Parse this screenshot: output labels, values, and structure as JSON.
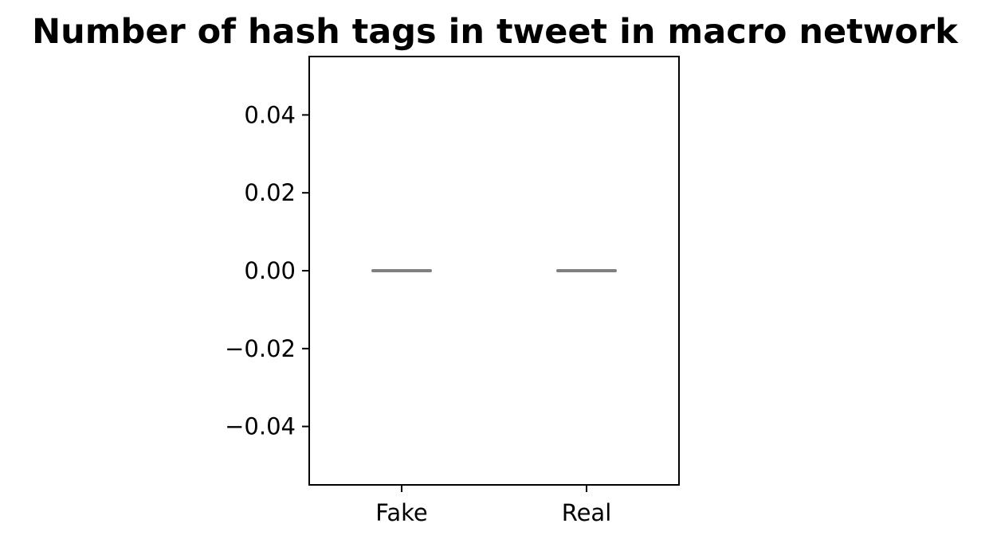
{
  "chart_data": {
    "type": "box",
    "title": "Number of hash tags in tweet in macro network",
    "xlabel": "",
    "ylabel": "",
    "categories": [
      "Fake",
      "Real"
    ],
    "boxes": [
      {
        "category": "Fake",
        "min": 0,
        "q1": 0,
        "median": 0,
        "q3": 0,
        "max": 0
      },
      {
        "category": "Real",
        "min": 0,
        "q1": 0,
        "median": 0,
        "q3": 0,
        "max": 0
      }
    ],
    "ylim": [
      -0.055,
      0.055
    ],
    "yticks": [
      -0.04,
      -0.02,
      0.0,
      0.02,
      0.04
    ],
    "ytick_labels": [
      "−0.04",
      "−0.02",
      "0.00",
      "0.02",
      "0.04"
    ],
    "grid": false,
    "colors": {
      "median": "#808080",
      "axes": "#000000"
    }
  }
}
